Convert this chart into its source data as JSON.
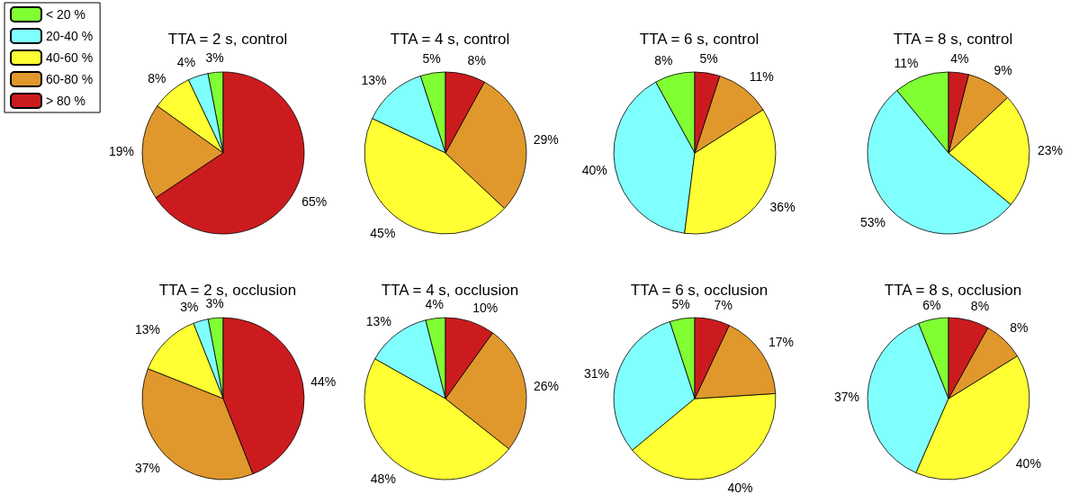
{
  "chart_data": [
    {
      "type": "pie",
      "title": "TTA = 2 s, control",
      "categories": [
        "< 20 %",
        "20-40 %",
        "40-60 %",
        "60-80 %",
        "> 80 %"
      ],
      "values": [
        3,
        4,
        8,
        19,
        65
      ],
      "value_labels": [
        "3%",
        "4%",
        "8%",
        "19%",
        "65%"
      ],
      "colors": [
        "#80ff33",
        "#80ffff",
        "#ffff33",
        "#e0982c",
        "#cc1b1e"
      ],
      "legend": "top left"
    },
    {
      "type": "pie",
      "title": "TTA = 4 s, control",
      "categories": [
        null,
        null,
        null,
        null,
        null
      ],
      "values": [
        5,
        13,
        45,
        29,
        8
      ],
      "value_labels": [
        "5%",
        "13%",
        "45%",
        "29%",
        "8%"
      ],
      "colors": [
        "#80ff33",
        "#80ffff",
        "#ffff33",
        "#e0982c",
        "#cc1b1e"
      ]
    },
    {
      "type": "pie",
      "title": "TTA = 6 s, control",
      "categories": [
        null,
        null,
        null,
        null,
        null
      ],
      "values": [
        8,
        40,
        36,
        11,
        5
      ],
      "value_labels": [
        "8%",
        "40%",
        "36%",
        "11%",
        "5%"
      ],
      "colors": [
        "#80ff33",
        "#80ffff",
        "#ffff33",
        "#e0982c",
        "#cc1b1e"
      ]
    },
    {
      "type": "pie",
      "title": "TTA = 8 s, control",
      "categories": [
        null,
        null,
        null,
        null,
        null
      ],
      "values": [
        11,
        53,
        23,
        9,
        4
      ],
      "value_labels": [
        "11%",
        "53%",
        "23%",
        "9%",
        "4%"
      ],
      "colors": [
        "#80ff33",
        "#80ffff",
        "#ffff33",
        "#e0982c",
        "#cc1b1e"
      ]
    },
    {
      "type": "pie",
      "title": "TTA = 2 s, occlusion",
      "categories": [
        null,
        null,
        null,
        null,
        null
      ],
      "values": [
        3,
        3,
        13,
        37,
        44
      ],
      "value_labels": [
        "3%",
        "3%",
        "13%",
        "37%",
        "44%"
      ],
      "colors": [
        "#80ff33",
        "#80ffff",
        "#ffff33",
        "#e0982c",
        "#cc1b1e"
      ]
    },
    {
      "type": "pie",
      "title": "TTA = 4 s, occlusion",
      "categories": [
        null,
        null,
        null,
        null,
        null
      ],
      "values": [
        4,
        13,
        48,
        26,
        10
      ],
      "value_labels": [
        "4%",
        "13%",
        "48%",
        "26%",
        "10%"
      ],
      "colors": [
        "#80ff33",
        "#80ffff",
        "#ffff33",
        "#e0982c",
        "#cc1b1e"
      ]
    },
    {
      "type": "pie",
      "title": "TTA = 6 s, occlusion",
      "categories": [
        null,
        null,
        null,
        null,
        null
      ],
      "values": [
        5,
        31,
        40,
        17,
        7
      ],
      "value_labels": [
        "5%",
        "31%",
        "40%",
        "17%",
        "7%"
      ],
      "colors": [
        "#80ff33",
        "#80ffff",
        "#ffff33",
        "#e0982c",
        "#cc1b1e"
      ]
    },
    {
      "type": "pie",
      "title": "TTA = 8 s, occlusion",
      "categories": [
        null,
        null,
        null,
        null,
        null
      ],
      "values": [
        6,
        37,
        40,
        8,
        8
      ],
      "value_labels": [
        "6%",
        "37%",
        "40%",
        "8%",
        "8%"
      ],
      "colors": [
        "#80ff33",
        "#80ffff",
        "#ffff33",
        "#e0982c",
        "#cc1b1e"
      ]
    }
  ]
}
